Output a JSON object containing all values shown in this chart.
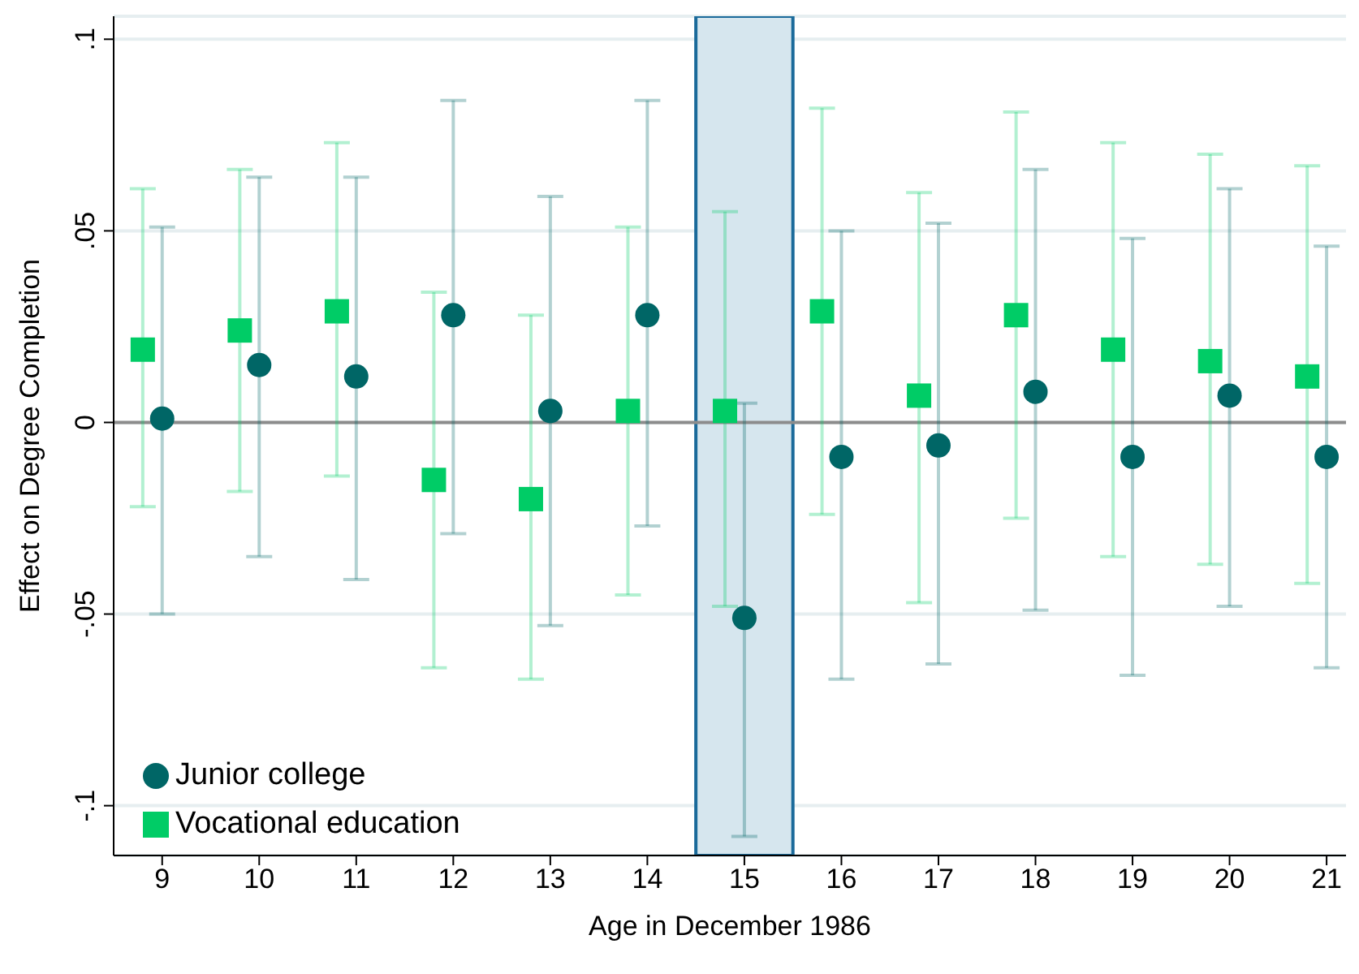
{
  "chart_data": {
    "type": "scatter",
    "xlabel": "Age in December 1986",
    "ylabel": "Effect on Degree Completion",
    "xlim": [
      8.5,
      21.2
    ],
    "xticks": [
      9,
      10,
      11,
      12,
      13,
      14,
      15,
      16,
      17,
      18,
      19,
      20,
      21
    ],
    "ylim": [
      -0.113,
      0.106
    ],
    "yticks": [
      {
        "value": 0.1,
        "label": ".1"
      },
      {
        "value": 0.05,
        "label": ".05"
      },
      {
        "value": 0,
        "label": "0"
      },
      {
        "value": -0.05,
        "label": "-.05"
      },
      {
        "value": -0.1,
        "label": "-.1"
      }
    ],
    "grid": "y",
    "legend": "bottom left",
    "ref_lines": [
      {
        "axis": "y",
        "value": 0,
        "color": "#8c8c8c"
      }
    ],
    "bands": [
      {
        "axis": "x",
        "from": 14.5,
        "to": 15.5,
        "color": "#d6e6ee"
      }
    ],
    "series": [
      {
        "name": "Junior college",
        "color": "#006666",
        "marker": "circle",
        "x": [
          9,
          10,
          11,
          12,
          13,
          14,
          15,
          16,
          17,
          18,
          19,
          20,
          21
        ],
        "values": [
          0.001,
          0.015,
          0.012,
          0.028,
          0.003,
          0.028,
          -0.051,
          -0.009,
          -0.006,
          0.008,
          -0.009,
          0.007,
          -0.009
        ],
        "errors": [
          [
            -0.05,
            0.051
          ],
          [
            -0.035,
            0.064
          ],
          [
            -0.041,
            0.064
          ],
          [
            -0.029,
            0.084
          ],
          [
            -0.053,
            0.059
          ],
          [
            -0.027,
            0.084
          ],
          [
            -0.108,
            0.005
          ],
          [
            -0.067,
            0.05
          ],
          [
            -0.063,
            0.052
          ],
          [
            -0.049,
            0.066
          ],
          [
            -0.066,
            0.048
          ],
          [
            -0.048,
            0.061
          ],
          [
            -0.064,
            0.046
          ]
        ]
      },
      {
        "name": "Vocational education",
        "color": "#00cc66",
        "marker": "square",
        "x": [
          8.8,
          9.8,
          10.8,
          11.8,
          12.8,
          13.8,
          14.8,
          15.8,
          16.8,
          17.8,
          18.8,
          19.8,
          20.8
        ],
        "values": [
          0.019,
          0.024,
          0.029,
          -0.015,
          -0.02,
          0.003,
          0.003,
          0.029,
          0.007,
          0.028,
          0.019,
          0.016,
          0.012
        ],
        "errors": [
          [
            -0.022,
            0.061
          ],
          [
            -0.018,
            0.066
          ],
          [
            -0.014,
            0.073
          ],
          [
            -0.064,
            0.034
          ],
          [
            -0.067,
            0.028
          ],
          [
            -0.045,
            0.051
          ],
          [
            -0.048,
            0.055
          ],
          [
            -0.024,
            0.082
          ],
          [
            -0.047,
            0.06
          ],
          [
            -0.025,
            0.081
          ],
          [
            -0.035,
            0.073
          ],
          [
            -0.037,
            0.07
          ],
          [
            -0.042,
            0.067
          ]
        ]
      }
    ]
  }
}
